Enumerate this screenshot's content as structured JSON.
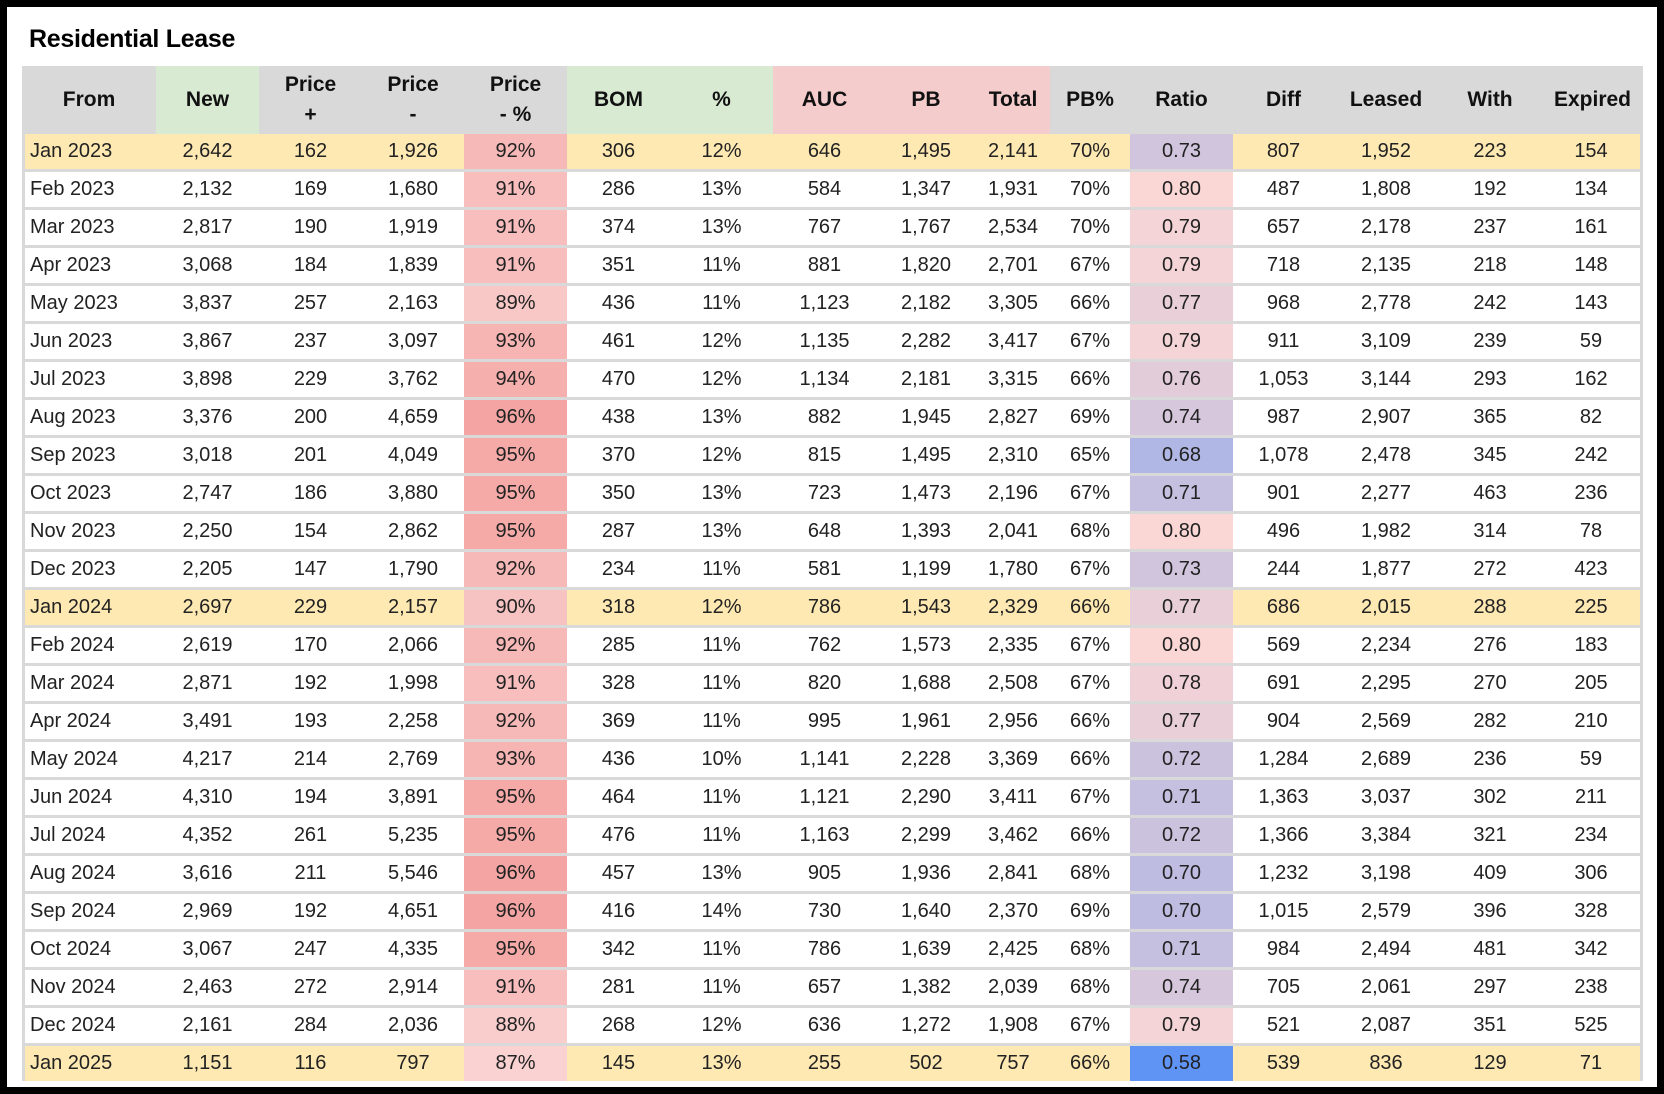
{
  "title": "Residential Lease",
  "columns": [
    {
      "label": "From",
      "label2": ""
    },
    {
      "label": "New",
      "label2": ""
    },
    {
      "label": "Price",
      "label2": "+"
    },
    {
      "label": "Price",
      "label2": "-"
    },
    {
      "label": "Price",
      "label2": "- %"
    },
    {
      "label": "BOM",
      "label2": ""
    },
    {
      "label": "%",
      "label2": ""
    },
    {
      "label": "AUC",
      "label2": ""
    },
    {
      "label": "PB",
      "label2": ""
    },
    {
      "label": "Total",
      "label2": ""
    },
    {
      "label": "PB%",
      "label2": ""
    },
    {
      "label": "Ratio",
      "label2": ""
    },
    {
      "label": "Diff",
      "label2": ""
    },
    {
      "label": "Leased",
      "label2": ""
    },
    {
      "label": "With",
      "label2": ""
    },
    {
      "label": "Expired",
      "label2": ""
    }
  ],
  "colors": {
    "header": "#d9d9d9",
    "header_green": "#d9ead3",
    "header_pink": "#f4cccc",
    "highlight_row": "#ffe9b3",
    "price_pct_low": "#f9d2d1",
    "price_pct_high": "#f4a5a3",
    "ratio_low": "#5f93f4",
    "ratio_high": "#fad6d5"
  },
  "highlight_rows": [
    "Jan 2023",
    "Jan 2024",
    "Jan 2025"
  ],
  "rows": [
    [
      "Jan 2023",
      "2,642",
      "162",
      "1,926",
      "92%",
      "306",
      "12%",
      "646",
      "1,495",
      "2,141",
      "70%",
      "0.73",
      "807",
      "1,952",
      "223",
      "154"
    ],
    [
      "Feb 2023",
      "2,132",
      "169",
      "1,680",
      "91%",
      "286",
      "13%",
      "584",
      "1,347",
      "1,931",
      "70%",
      "0.80",
      "487",
      "1,808",
      "192",
      "134"
    ],
    [
      "Mar 2023",
      "2,817",
      "190",
      "1,919",
      "91%",
      "374",
      "13%",
      "767",
      "1,767",
      "2,534",
      "70%",
      "0.79",
      "657",
      "2,178",
      "237",
      "161"
    ],
    [
      "Apr 2023",
      "3,068",
      "184",
      "1,839",
      "91%",
      "351",
      "11%",
      "881",
      "1,820",
      "2,701",
      "67%",
      "0.79",
      "718",
      "2,135",
      "218",
      "148"
    ],
    [
      "May 2023",
      "3,837",
      "257",
      "2,163",
      "89%",
      "436",
      "11%",
      "1,123",
      "2,182",
      "3,305",
      "66%",
      "0.77",
      "968",
      "2,778",
      "242",
      "143"
    ],
    [
      "Jun 2023",
      "3,867",
      "237",
      "3,097",
      "93%",
      "461",
      "12%",
      "1,135",
      "2,282",
      "3,417",
      "67%",
      "0.79",
      "911",
      "3,109",
      "239",
      "59"
    ],
    [
      "Jul 2023",
      "3,898",
      "229",
      "3,762",
      "94%",
      "470",
      "12%",
      "1,134",
      "2,181",
      "3,315",
      "66%",
      "0.76",
      "1,053",
      "3,144",
      "293",
      "162"
    ],
    [
      "Aug 2023",
      "3,376",
      "200",
      "4,659",
      "96%",
      "438",
      "13%",
      "882",
      "1,945",
      "2,827",
      "69%",
      "0.74",
      "987",
      "2,907",
      "365",
      "82"
    ],
    [
      "Sep 2023",
      "3,018",
      "201",
      "4,049",
      "95%",
      "370",
      "12%",
      "815",
      "1,495",
      "2,310",
      "65%",
      "0.68",
      "1,078",
      "2,478",
      "345",
      "242"
    ],
    [
      "Oct 2023",
      "2,747",
      "186",
      "3,880",
      "95%",
      "350",
      "13%",
      "723",
      "1,473",
      "2,196",
      "67%",
      "0.71",
      "901",
      "2,277",
      "463",
      "236"
    ],
    [
      "Nov 2023",
      "2,250",
      "154",
      "2,862",
      "95%",
      "287",
      "13%",
      "648",
      "1,393",
      "2,041",
      "68%",
      "0.80",
      "496",
      "1,982",
      "314",
      "78"
    ],
    [
      "Dec 2023",
      "2,205",
      "147",
      "1,790",
      "92%",
      "234",
      "11%",
      "581",
      "1,199",
      "1,780",
      "67%",
      "0.73",
      "244",
      "1,877",
      "272",
      "423"
    ],
    [
      "Jan 2024",
      "2,697",
      "229",
      "2,157",
      "90%",
      "318",
      "12%",
      "786",
      "1,543",
      "2,329",
      "66%",
      "0.77",
      "686",
      "2,015",
      "288",
      "225"
    ],
    [
      "Feb 2024",
      "2,619",
      "170",
      "2,066",
      "92%",
      "285",
      "11%",
      "762",
      "1,573",
      "2,335",
      "67%",
      "0.80",
      "569",
      "2,234",
      "276",
      "183"
    ],
    [
      "Mar 2024",
      "2,871",
      "192",
      "1,998",
      "91%",
      "328",
      "11%",
      "820",
      "1,688",
      "2,508",
      "67%",
      "0.78",
      "691",
      "2,295",
      "270",
      "205"
    ],
    [
      "Apr 2024",
      "3,491",
      "193",
      "2,258",
      "92%",
      "369",
      "11%",
      "995",
      "1,961",
      "2,956",
      "66%",
      "0.77",
      "904",
      "2,569",
      "282",
      "210"
    ],
    [
      "May 2024",
      "4,217",
      "214",
      "2,769",
      "93%",
      "436",
      "10%",
      "1,141",
      "2,228",
      "3,369",
      "66%",
      "0.72",
      "1,284",
      "2,689",
      "236",
      "59"
    ],
    [
      "Jun 2024",
      "4,310",
      "194",
      "3,891",
      "95%",
      "464",
      "11%",
      "1,121",
      "2,290",
      "3,411",
      "67%",
      "0.71",
      "1,363",
      "3,037",
      "302",
      "211"
    ],
    [
      "Jul 2024",
      "4,352",
      "261",
      "5,235",
      "95%",
      "476",
      "11%",
      "1,163",
      "2,299",
      "3,462",
      "66%",
      "0.72",
      "1,366",
      "3,384",
      "321",
      "234"
    ],
    [
      "Aug 2024",
      "3,616",
      "211",
      "5,546",
      "96%",
      "457",
      "13%",
      "905",
      "1,936",
      "2,841",
      "68%",
      "0.70",
      "1,232",
      "3,198",
      "409",
      "306"
    ],
    [
      "Sep 2024",
      "2,969",
      "192",
      "4,651",
      "96%",
      "416",
      "14%",
      "730",
      "1,640",
      "2,370",
      "69%",
      "0.70",
      "1,015",
      "2,579",
      "396",
      "328"
    ],
    [
      "Oct 2024",
      "3,067",
      "247",
      "4,335",
      "95%",
      "342",
      "11%",
      "786",
      "1,639",
      "2,425",
      "68%",
      "0.71",
      "984",
      "2,494",
      "481",
      "342"
    ],
    [
      "Nov 2024",
      "2,463",
      "272",
      "2,914",
      "91%",
      "281",
      "11%",
      "657",
      "1,382",
      "2,039",
      "68%",
      "0.74",
      "705",
      "2,061",
      "297",
      "238"
    ],
    [
      "Dec 2024",
      "2,161",
      "284",
      "2,036",
      "88%",
      "268",
      "12%",
      "636",
      "1,272",
      "1,908",
      "67%",
      "0.79",
      "521",
      "2,087",
      "351",
      "525"
    ],
    [
      "Jan 2025",
      "1,151",
      "116",
      "797",
      "87%",
      "145",
      "13%",
      "255",
      "502",
      "757",
      "66%",
      "0.58",
      "539",
      "836",
      "129",
      "71"
    ]
  ]
}
